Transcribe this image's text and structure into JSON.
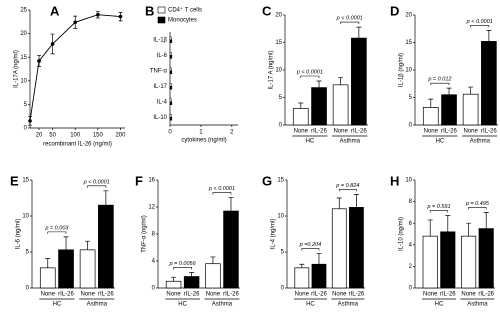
{
  "chart_data": [
    {
      "type": "line",
      "panel": "A",
      "ylabel": "IL-17A (ng/ml)",
      "xlabel": "recombinant IL-26 (ng/ml)",
      "x": [
        0,
        20,
        50,
        100,
        150,
        200
      ],
      "values": [
        1.5,
        14.2,
        17.8,
        22.4,
        24.0,
        23.6
      ],
      "errors": [
        0.9,
        1.2,
        2.1,
        1.3,
        0.7,
        0.9
      ],
      "color": "#000000",
      "xlim": [
        0,
        210
      ],
      "xticks": [
        20,
        50,
        100,
        150,
        200
      ],
      "ylim": [
        0,
        25
      ],
      "yticks": [
        0,
        5,
        10,
        15,
        20,
        25
      ]
    },
    {
      "type": "hbar",
      "panel": "B",
      "xlabel": "cytokines (ng/ml)",
      "categories": [
        "IL-1β",
        "IL-6",
        "TNF-α",
        "IL-17",
        "IL-4",
        "IL-10"
      ],
      "series": [
        {
          "name": "CD4⁺ T cells",
          "color": "#ffffff",
          "values": [
            0.04,
            0.04,
            0.04,
            0.04,
            0.04,
            0.04
          ]
        },
        {
          "name": "Monocytes",
          "color": "#000000",
          "values": [
            0.06,
            0.06,
            0.06,
            0.06,
            0.06,
            0.06
          ]
        }
      ],
      "xlim": [
        0,
        2.2
      ],
      "xticks": [
        0,
        1,
        2
      ]
    },
    {
      "type": "bar",
      "panel": "C",
      "ylabel": "IL-17 A (ng/ml)",
      "categories": [
        "None",
        "rIL-26",
        "None",
        "rIL-26"
      ],
      "groups": [
        "HC",
        "Asthma"
      ],
      "values": [
        3.0,
        6.8,
        7.3,
        15.8
      ],
      "errors": [
        1.0,
        1.2,
        1.3,
        2.0
      ],
      "colors": [
        "#ffffff",
        "#000000",
        "#ffffff",
        "#000000"
      ],
      "annotations": [
        "p < 0.0001",
        "p < 0.0001"
      ],
      "ylim": [
        0,
        20
      ],
      "yticks": [
        0,
        5,
        10,
        15,
        20
      ]
    },
    {
      "type": "bar",
      "panel": "D",
      "ylabel": "IL-1β (ng/ml)",
      "categories": [
        "None",
        "rIL-26",
        "None",
        "rIL-26"
      ],
      "groups": [
        "HC",
        "Asthma"
      ],
      "values": [
        3.2,
        5.5,
        5.6,
        15.2
      ],
      "errors": [
        1.5,
        1.2,
        1.3,
        2.0
      ],
      "colors": [
        "#ffffff",
        "#000000",
        "#ffffff",
        "#000000"
      ],
      "annotations": [
        "p = 0.012",
        "p < 0.0001"
      ],
      "ylim": [
        0,
        20
      ],
      "yticks": [
        0,
        5,
        10,
        15,
        20
      ]
    },
    {
      "type": "bar",
      "panel": "E",
      "ylabel": "IL-6 (ng/ml)",
      "categories": [
        "None",
        "rIL-26",
        "None",
        "rIL-26"
      ],
      "groups": [
        "HC",
        "Asthma"
      ],
      "values": [
        2.8,
        5.3,
        5.3,
        11.5
      ],
      "errors": [
        1.3,
        1.8,
        1.2,
        2.0
      ],
      "colors": [
        "#ffffff",
        "#000000",
        "#ffffff",
        "#000000"
      ],
      "annotations": [
        "p = 0.003",
        "p < 0.0001"
      ],
      "ylim": [
        0,
        15
      ],
      "yticks": [
        0,
        5,
        10,
        15
      ]
    },
    {
      "type": "bar",
      "panel": "F",
      "ylabel": "TNF-α (ng/ml)",
      "categories": [
        "None",
        "rIL-26",
        "None",
        "rIL-26"
      ],
      "groups": [
        "HC",
        "Asthma"
      ],
      "values": [
        1.0,
        1.7,
        3.6,
        11.4
      ],
      "errors": [
        0.6,
        0.6,
        1.0,
        2.0
      ],
      "colors": [
        "#ffffff",
        "#000000",
        "#ffffff",
        "#000000"
      ],
      "annotations": [
        "p = 0.0056",
        "p < 0.0001"
      ],
      "ylim": [
        0,
        16
      ],
      "yticks": [
        0,
        4,
        8,
        12,
        16
      ]
    },
    {
      "type": "bar",
      "panel": "G",
      "ylabel": "IL-4 (ng/ml)",
      "categories": [
        "None",
        "rIL-26",
        "None",
        "rIL-26"
      ],
      "groups": [
        "HC",
        "Asthma"
      ],
      "values": [
        2.8,
        3.3,
        11.0,
        11.2
      ],
      "errors": [
        0.5,
        1.5,
        1.5,
        1.8
      ],
      "colors": [
        "#ffffff",
        "#000000",
        "#ffffff",
        "#000000"
      ],
      "annotations": [
        "p =0.204",
        "p = 0.824"
      ],
      "ylim": [
        0,
        15
      ],
      "yticks": [
        0,
        5,
        10,
        15
      ]
    },
    {
      "type": "bar",
      "panel": "H",
      "ylabel": "IL-10 (ng/ml)",
      "categories": [
        "None",
        "rIL-26",
        "None",
        "rIL-26"
      ],
      "groups": [
        "HC",
        "Asthma"
      ],
      "values": [
        4.8,
        5.2,
        4.8,
        5.5
      ],
      "errors": [
        1.5,
        1.5,
        1.2,
        1.5
      ],
      "colors": [
        "#ffffff",
        "#000000",
        "#ffffff",
        "#000000"
      ],
      "annotations": [
        "p = 0.591",
        "p = 0.495"
      ],
      "ylim": [
        0,
        10
      ],
      "yticks": [
        0,
        2,
        4,
        6,
        8,
        10
      ]
    }
  ]
}
